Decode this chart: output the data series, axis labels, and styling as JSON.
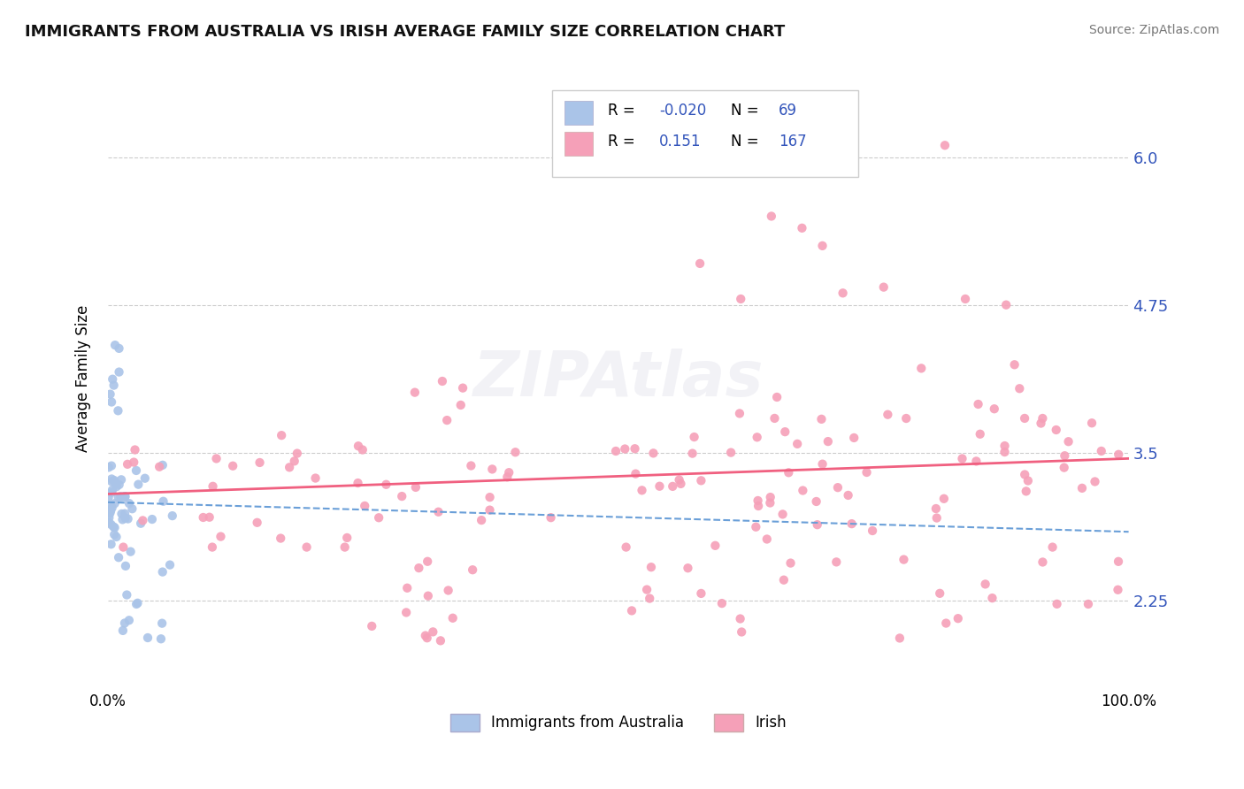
{
  "title": "IMMIGRANTS FROM AUSTRALIA VS IRISH AVERAGE FAMILY SIZE CORRELATION CHART",
  "source": "Source: ZipAtlas.com",
  "ylabel": "Average Family Size",
  "xlim": [
    0,
    1
  ],
  "ylim": [
    1.5,
    6.75
  ],
  "yticks": [
    2.25,
    3.5,
    4.75,
    6.0
  ],
  "legend_labels": [
    "Immigrants from Australia",
    "Irish"
  ],
  "blue_color": "#aac4e8",
  "pink_color": "#f5a0b8",
  "blue_line_color": "#6a9fd8",
  "pink_line_color": "#f06080",
  "axis_label_color": "#3355bb",
  "tick_color": "#3355bb",
  "grid_color": "#cccccc",
  "R_blue": -0.02,
  "N_blue": 69,
  "R_pink": 0.151,
  "N_pink": 167,
  "blue_slope": -0.25,
  "blue_intercept": 3.08,
  "pink_slope": 0.3,
  "pink_intercept": 3.15
}
